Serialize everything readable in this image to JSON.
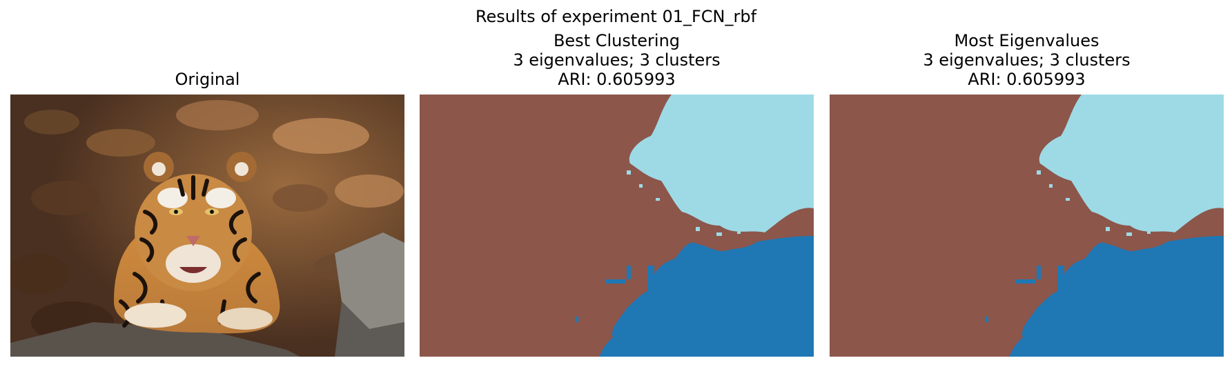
{
  "figure": {
    "suptitle": "Results of experiment 01_FCN_rbf"
  },
  "panels": [
    {
      "id": "original",
      "title_lines": [
        "Original"
      ],
      "content": "photo"
    },
    {
      "id": "best",
      "title_lines": [
        "Best Clustering",
        "3 eigenvalues; 3 clusters",
        "ARI: 0.605993"
      ],
      "content": "segmentation"
    },
    {
      "id": "most",
      "title_lines": [
        "Most Eigenvalues",
        "3 eigenvalues; 3 clusters",
        "ARI: 0.605993"
      ],
      "content": "segmentation"
    }
  ],
  "colors": {
    "background_cluster": "#8c564b",
    "upper_cluster": "#9edae5",
    "lower_cluster": "#1f77b4"
  }
}
